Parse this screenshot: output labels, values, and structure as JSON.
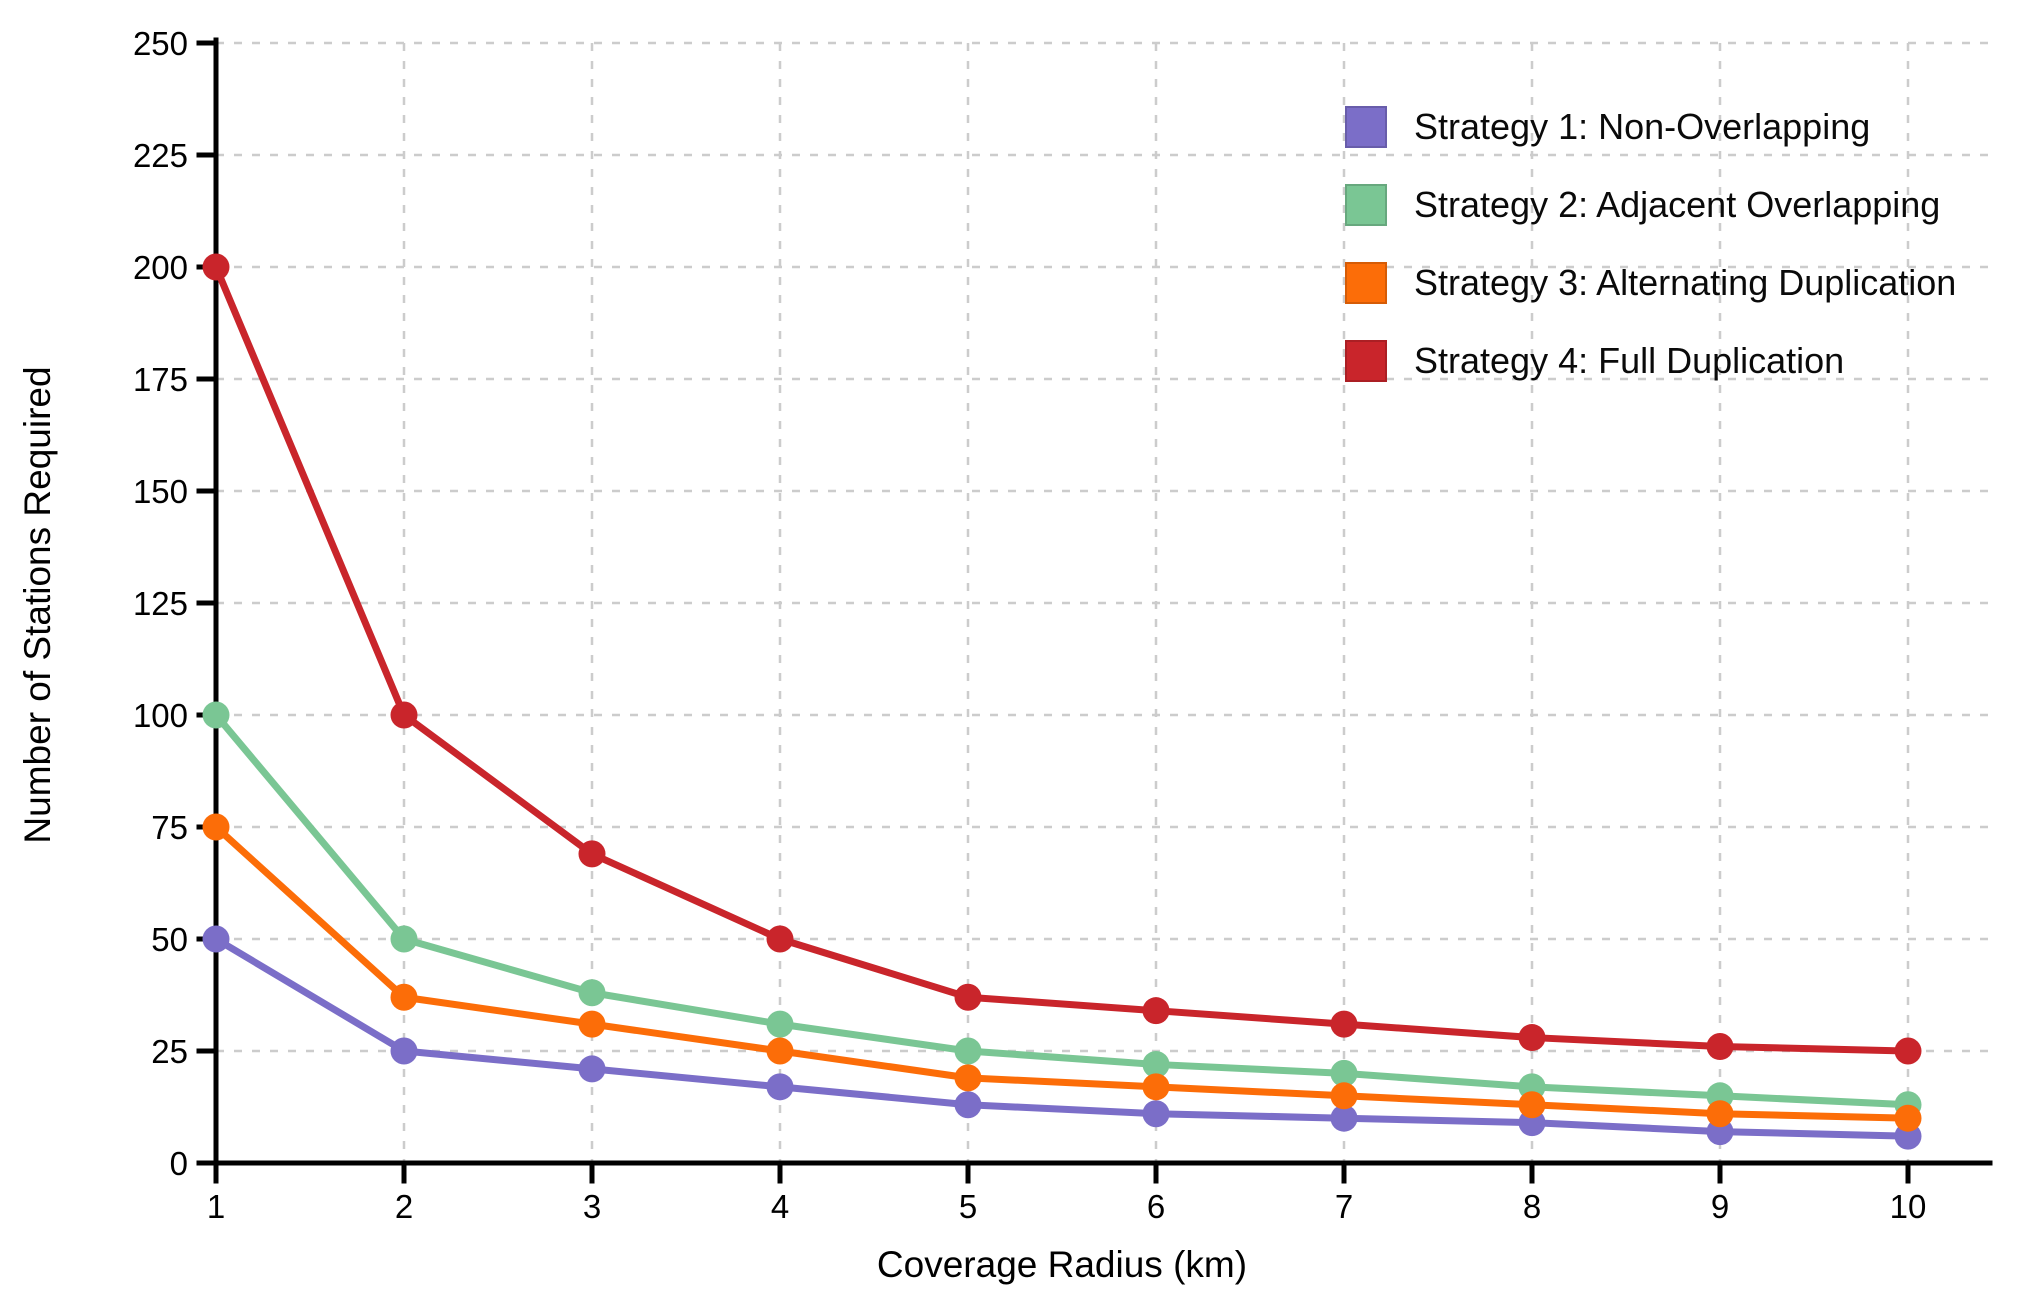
{
  "chart_data": {
    "type": "line",
    "title": "",
    "xlabel": "Coverage Radius (km)",
    "ylabel": "Number of Stations Required",
    "x": [
      1,
      2,
      3,
      4,
      5,
      6,
      7,
      8,
      9,
      10
    ],
    "xticks": [
      "1",
      "2",
      "3",
      "4",
      "5",
      "6",
      "7",
      "8",
      "9",
      "10"
    ],
    "yticks": [
      "0",
      "25",
      "50",
      "75",
      "100",
      "125",
      "150",
      "175",
      "200",
      "225",
      "250"
    ],
    "xlim": [
      1,
      10
    ],
    "ylim": [
      0,
      250
    ],
    "grid": true,
    "grid_style": "dashed",
    "grid_color": "#cccccc",
    "background_color": "#ffffff",
    "axis_color": "#000000",
    "legend_position": "upper right",
    "marker": "circle",
    "series": [
      {
        "name": "Strategy 1: Non-Overlapping",
        "color": "#7B6EC8",
        "values": [
          50,
          25,
          21,
          17,
          13,
          11,
          10,
          9,
          7,
          6
        ]
      },
      {
        "name": "Strategy 2: Adjacent Overlapping",
        "color": "#7AC694",
        "values": [
          100,
          50,
          38,
          31,
          25,
          22,
          20,
          17,
          15,
          13
        ]
      },
      {
        "name": "Strategy 3: Alternating Duplication",
        "color": "#FC6D08",
        "values": [
          75,
          37,
          31,
          25,
          19,
          17,
          15,
          13,
          11,
          10
        ]
      },
      {
        "name": "Strategy 4: Full Duplication",
        "color": "#C9252B",
        "values": [
          200,
          100,
          69,
          50,
          37,
          34,
          31,
          28,
          26,
          25
        ]
      }
    ]
  }
}
